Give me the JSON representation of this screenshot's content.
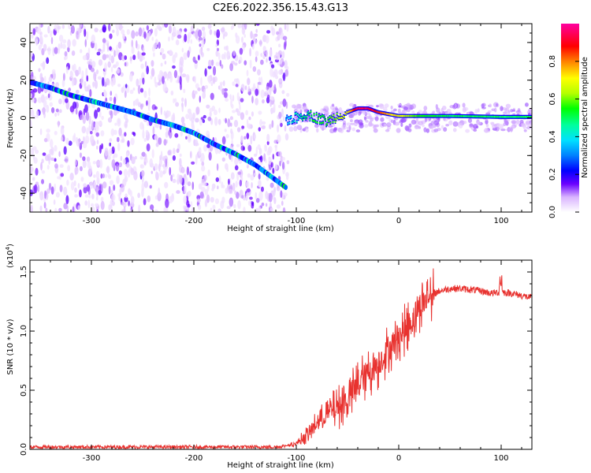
{
  "figure_title": "C2E6.2022.356.15.43.G13",
  "colors": {
    "snr_line": "#e8322f",
    "colormap_stops": [
      "#ffffff",
      "#9b4dff",
      "#6a00ff",
      "#0000ff",
      "#00b4ff",
      "#00e8a0",
      "#00ff00",
      "#b4ff00",
      "#ffff00",
      "#ff8000",
      "#ff0000",
      "#ff00a0"
    ]
  },
  "chart_data": [
    {
      "type": "heatmap",
      "title": "",
      "xlabel": "Height of straight line (km)",
      "ylabel": "Frequency (Hz)",
      "xlim": [
        -360,
        130
      ],
      "ylim": [
        -50,
        50
      ],
      "x_ticks": [
        -300,
        -200,
        -100,
        0,
        100
      ],
      "x_tick_labels": [
        "-300",
        "-200",
        "-100",
        "0",
        "100"
      ],
      "y_ticks": [
        -40,
        -20,
        0,
        20,
        40
      ],
      "y_tick_labels": [
        "-40",
        "-20",
        "0",
        "20",
        "40"
      ],
      "colorbar": {
        "label": "Normalized spectral amplitude",
        "range": [
          0,
          1
        ],
        "ticks": [
          0.0,
          0.2,
          0.4,
          0.6,
          0.8
        ],
        "tick_labels": [
          "0.0",
          "0.2",
          "0.4",
          "0.6",
          "0.8"
        ]
      },
      "ridge": {
        "description_points_x": [
          -360,
          -340,
          -320,
          -300,
          -280,
          -260,
          -240,
          -220,
          -200,
          -180,
          -160,
          -140,
          -120,
          -110
        ],
        "description_points_y": [
          19,
          16,
          12,
          9,
          6,
          3,
          -1,
          -4,
          -8,
          -14,
          -19,
          -25,
          -33,
          -37
        ]
      },
      "tone": {
        "x": [
          -110,
          -100,
          -90,
          -80,
          -70,
          -60,
          -50,
          -40,
          -30,
          -20,
          -10,
          0,
          20,
          50,
          100,
          130
        ],
        "y": [
          -1,
          0,
          2,
          0,
          -2,
          1,
          3,
          5,
          5,
          3,
          2,
          1,
          1,
          1,
          0.5,
          0.5
        ],
        "amplitude": [
          0.35,
          0.45,
          0.5,
          0.55,
          0.55,
          0.6,
          0.7,
          0.95,
          0.95,
          0.85,
          0.75,
          0.7,
          0.55,
          0.5,
          0.5,
          0.5
        ]
      }
    },
    {
      "type": "line",
      "title": "",
      "xlabel": "Height of straight line (km)",
      "ylabel": "SNR (10 * v/v)",
      "y_scale_label": "(x10",
      "y_scale_exp": "4",
      "xlim": [
        -360,
        130
      ],
      "ylim": [
        0,
        1.6
      ],
      "x_ticks": [
        -300,
        -200,
        -100,
        0,
        100
      ],
      "x_tick_labels": [
        "-300",
        "-200",
        "-100",
        "0",
        "100"
      ],
      "y_ticks": [
        0.0,
        0.5,
        1.0,
        1.5
      ],
      "y_tick_labels": [
        "0.0",
        "0.5",
        "1.0",
        "1.5"
      ],
      "series": [
        {
          "x": [
            -360,
            -340,
            -320,
            -300,
            -280,
            -260,
            -240,
            -220,
            -200,
            -180,
            -160,
            -140,
            -120,
            -110,
            -100,
            -90,
            -80,
            -70,
            -60,
            -50,
            -40,
            -30,
            -20,
            -10,
            0,
            10,
            20,
            30,
            40,
            50,
            60,
            70,
            80,
            90,
            100,
            110,
            120,
            130
          ],
          "values": [
            0.02,
            0.02,
            0.02,
            0.02,
            0.02,
            0.02,
            0.02,
            0.02,
            0.02,
            0.02,
            0.02,
            0.02,
            0.02,
            0.03,
            0.05,
            0.12,
            0.22,
            0.3,
            0.35,
            0.42,
            0.55,
            0.65,
            0.72,
            0.85,
            0.95,
            1.05,
            1.2,
            1.3,
            1.34,
            1.36,
            1.36,
            1.35,
            1.34,
            1.32,
            1.33,
            1.32,
            1.3,
            1.28
          ]
        }
      ]
    }
  ]
}
